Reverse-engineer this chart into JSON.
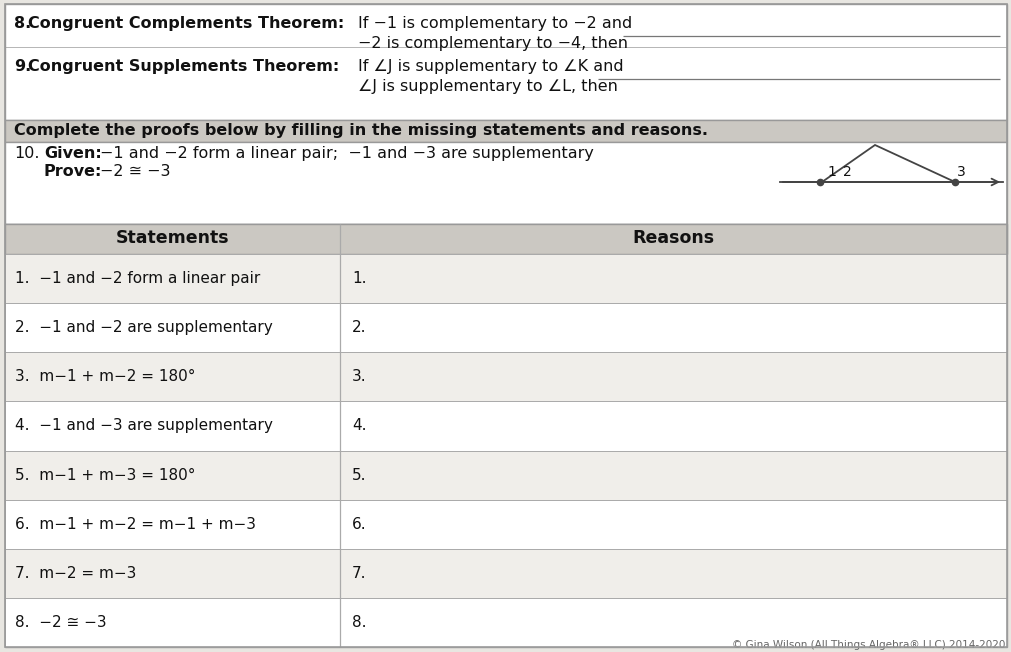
{
  "bg_color": "#e8e6e1",
  "white": "#ffffff",
  "banner_bg": "#cbc8c2",
  "border_col": "#999999",
  "grid_col": "#aaaaaa",
  "text_col": "#111111",
  "footer_col": "#666666",
  "q8_bold": "8.  Congruent Complements Theorem:",
  "q8_line1": "If −1 is complementary to −2 and",
  "q8_line2": "−2 is complementary to −4, then",
  "q9_bold": "9.  Congruent Supplements Theorem:",
  "q9_line1": "If ∠J is supplementary to ∠K and",
  "q9_line2": "∠J is supplementary to ∠L, then",
  "banner_text": "Complete the proofs below by filling in the missing statements and reasons.",
  "given_label": "Given:",
  "given_text": "−1 and −2 form a linear pair;  −1 and −3 are supplementary",
  "prove_label": "Prove:",
  "prove_text": "−2 ≅ −3",
  "col_header_1": "Statements",
  "col_header_2": "Reasons",
  "table_rows": [
    [
      "1.  −1 and −2 form a linear pair",
      "1."
    ],
    [
      "2.  −1 and −2 are supplementary",
      "2."
    ],
    [
      "3.  m−1 + m−2 = 180°",
      "3."
    ],
    [
      "4.  −1 and −3 are supplementary",
      "4."
    ],
    [
      "5.  m−1 + m−3 = 180°",
      "5."
    ],
    [
      "6.  m−1 + m−2 = m−1 + m−3",
      "6."
    ],
    [
      "7.  m−2 = m−3",
      "7."
    ],
    [
      "8.  −2 ≅ −3",
      "8."
    ]
  ],
  "footer": "© Gina Wilson (All Things Algebra® LLC) 2014-2020"
}
